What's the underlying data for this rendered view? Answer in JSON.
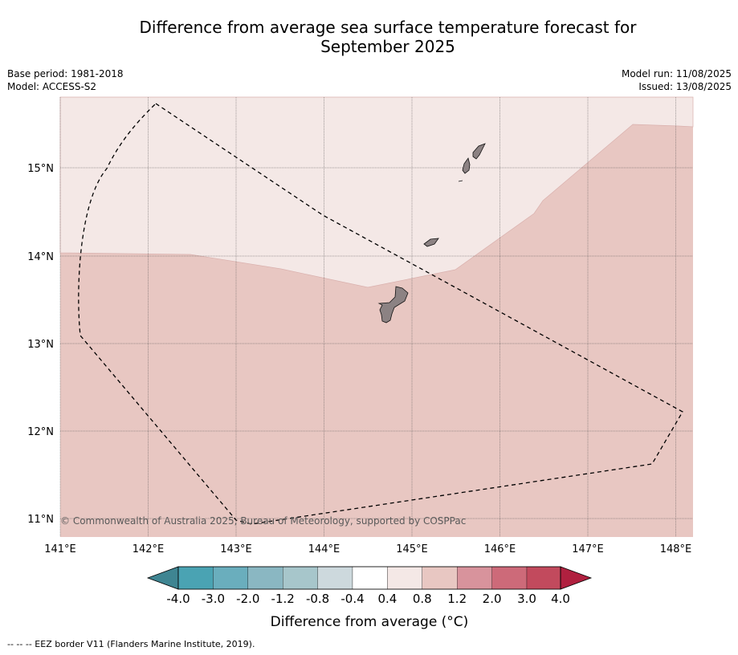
{
  "title": {
    "line1": "Difference from average sea surface temperature forecast for",
    "line2": "September 2025"
  },
  "meta": {
    "base_period": "Base period: 1981-2018",
    "model": "Model: ACCESS-S2",
    "model_run": "Model run: 11/08/2025",
    "issued": "Issued: 13/08/2025"
  },
  "axes": {
    "x_ticks": [
      "141°E",
      "142°E",
      "143°E",
      "144°E",
      "145°E",
      "146°E",
      "147°E",
      "148°E"
    ],
    "y_ticks": [
      "11°N",
      "12°N",
      "13°N",
      "14°N",
      "15°N"
    ]
  },
  "map": {
    "copyright": "© Commonwealth of Australia 2025, Bureau of Meteorology, supported by COSPPac",
    "colors": {
      "anomaly_0_4_to_0_8": "#f4e8e6",
      "anomaly_0_8_to_1_2": "#e8c7c2",
      "land": "#8c8283",
      "border": "#000000"
    }
  },
  "colorbar": {
    "title": "Difference from average (°C)",
    "labels": [
      "-4.0",
      "-3.0",
      "-2.0",
      "-1.2",
      "-0.8",
      "-0.4",
      "0.4",
      "0.8",
      "1.2",
      "2.0",
      "3.0",
      "4.0"
    ],
    "colors": [
      "#3f8592",
      "#4aa3b3",
      "#6aaebd",
      "#8ab7c2",
      "#a7c6cb",
      "#cdd9dd",
      "#ffffff",
      "#f4e8e6",
      "#e8c7c2",
      "#d8939c",
      "#cd6a79",
      "#c24a5d",
      "#b0203f"
    ]
  },
  "footnote": "--  --  -- EEZ border V11 (Flanders Marine Institute, 2019)."
}
